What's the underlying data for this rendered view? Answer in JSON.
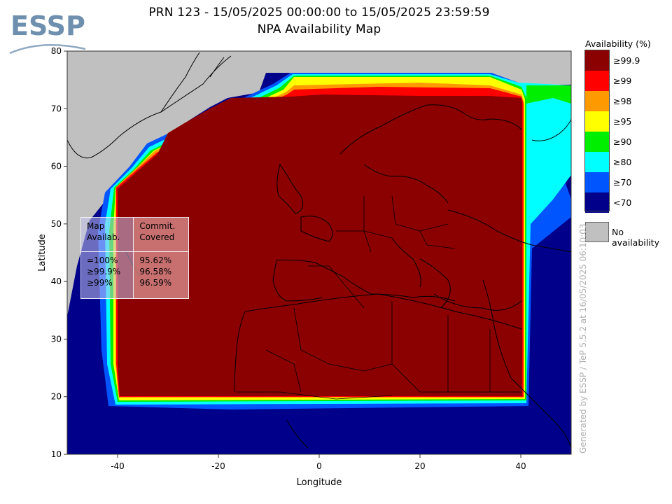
{
  "title": {
    "line1": "PRN 123 - 15/05/2025 00:00:00 to 15/05/2025 23:59:59",
    "line2": "NPA Availability Map"
  },
  "logo": {
    "text": "ESSP"
  },
  "axes": {
    "x": {
      "label": "Longitude",
      "range": [
        -50,
        50
      ],
      "ticks": [
        "-40",
        "-20",
        "0",
        "20",
        "40"
      ]
    },
    "y": {
      "label": "Latitude",
      "range": [
        10,
        80
      ],
      "ticks": [
        "80",
        "70",
        "60",
        "50",
        "40",
        "30",
        "20",
        "10"
      ]
    }
  },
  "legend": {
    "title": "Availability (%)",
    "items": [
      {
        "label": "≥99.9",
        "color": "#8b0000"
      },
      {
        "label": "≥99",
        "color": "#ff0000"
      },
      {
        "label": "≥98",
        "color": "#ff9900"
      },
      {
        "label": "≥95",
        "color": "#ffff00"
      },
      {
        "label": "≥90",
        "color": "#00ee00"
      },
      {
        "label": "≥80",
        "color": "#00ffff"
      },
      {
        "label": "≥70",
        "color": "#0055ff"
      },
      {
        "label": "<70",
        "color": "#00008b"
      }
    ],
    "no_availability": {
      "label": "No availability",
      "color": "#c0c0c0"
    }
  },
  "stats_table": {
    "header_map": [
      "Map",
      "Availab."
    ],
    "header_commit": [
      "Commit.",
      "Covered"
    ],
    "rows": [
      {
        "map": "=100%",
        "covered": "95.62%"
      },
      {
        "map": "≥99.9%",
        "covered": "96.58%"
      },
      {
        "map": "≥99%",
        "covered": "96.59%"
      }
    ]
  },
  "watermark": "Generated by ESSP / TeP 5.5.2 at 16/05/2025 06:10:03",
  "colors": {
    "outside": "#00008b",
    "core": "#8b0000",
    "no_data": "#c0c0c0"
  }
}
